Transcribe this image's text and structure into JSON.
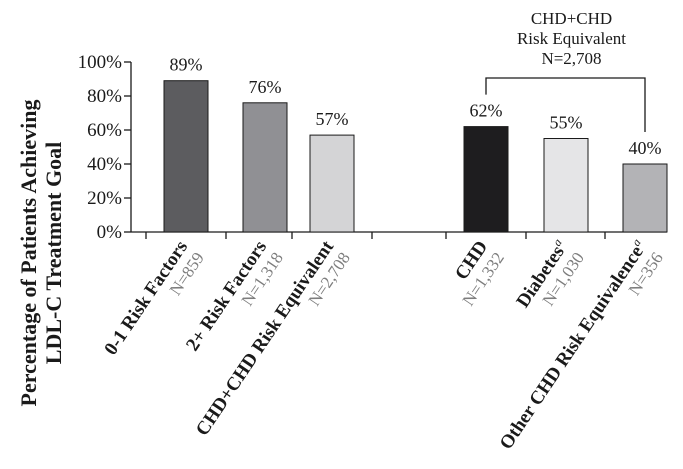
{
  "chart_data": {
    "type": "bar",
    "ylabel_line1": "Percentage of Patients Achieving",
    "ylabel_line2": "LDL-C Treatment Goal",
    "ylim": [
      0,
      100
    ],
    "yticks": [
      "0%",
      "20%",
      "40%",
      "60%",
      "80%",
      "100%"
    ],
    "grid": false,
    "legend": "none",
    "group_label": {
      "line1": "CHD+CHD",
      "line2": "Risk Equivalent",
      "line3": "N=2,708"
    },
    "bars": [
      {
        "category": "0-1 Risk Factors",
        "n": "N=859",
        "value": 89,
        "label": "89%",
        "color": "#5c5c5f"
      },
      {
        "category": "2+ Risk Factors",
        "n": "N=1,318",
        "value": 76,
        "label": "76%",
        "color": "#909094"
      },
      {
        "category": "CHD+CHD Risk Equivalent",
        "n": "N=2,708",
        "value": 57,
        "label": "57%",
        "color": "#d4d4d6"
      },
      {
        "category": "CHD",
        "n": "N=1,332",
        "value": 62,
        "label": "62%",
        "color": "#1e1d1f"
      },
      {
        "category": "Diabetes",
        "superscript": "a",
        "n": "N=1,030",
        "value": 55,
        "label": "55%",
        "color": "#e5e5e7"
      },
      {
        "category": "Other CHD Risk Equivalence",
        "superscript": "a",
        "n": "N=356",
        "value": 40,
        "label": "40%",
        "color": "#b3b3b6"
      }
    ]
  }
}
